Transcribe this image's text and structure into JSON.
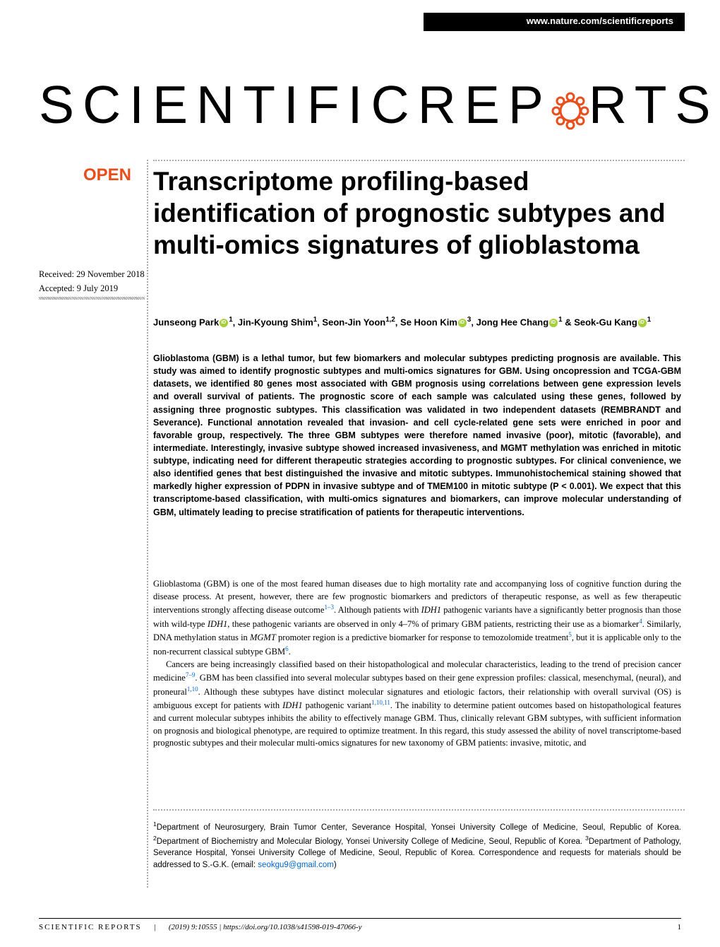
{
  "header": {
    "url": "www.nature.com/scientificreports",
    "journal_logo_text_1": "SCIENTIFIC ",
    "journal_logo_text_2": "REP",
    "journal_logo_text_3": "RTS",
    "open_badge": "OPEN",
    "gear_color": "#e84e1b"
  },
  "title": "Transcriptome profiling-based identification of prognostic subtypes and multi-omics signatures of glioblastoma",
  "dates": {
    "received": "Received: 29 November 2018",
    "accepted": "Accepted: 9 July 2019"
  },
  "authors_html": "Junseong Park<span class='orcid'></span><sup>1</sup>, Jin-Kyoung Shim<sup>1</sup>, Seon-Jin Yoon<sup>1,2</sup>, Se Hoon Kim<span class='orcid'></span><sup>3</sup>, Jong Hee Chang<span class='orcid'></span><sup>1</sup> &amp; Seok-Gu Kang<span class='orcid'></span><sup>1</sup>",
  "abstract": "Glioblastoma (GBM) is a lethal tumor, but few biomarkers and molecular subtypes predicting prognosis are available. This study was aimed to identify prognostic subtypes and multi-omics signatures for GBM. Using oncopression and TCGA-GBM datasets, we identified 80 genes most associated with GBM prognosis using correlations between gene expression levels and overall survival of patients. The prognostic score of each sample was calculated using these genes, followed by assigning three prognostic subtypes. This classification was validated in two independent datasets (REMBRANDT and Severance). Functional annotation revealed that invasion- and cell cycle-related gene sets were enriched in poor and favorable group, respectively. The three GBM subtypes were therefore named invasive (poor), mitotic (favorable), and intermediate. Interestingly, invasive subtype showed increased invasiveness, and MGMT methylation was enriched in mitotic subtype, indicating need for different therapeutic strategies according to prognostic subtypes. For clinical convenience, we also identified genes that best distinguished the invasive and mitotic subtypes. Immunohistochemical staining showed that markedly higher expression of PDPN in invasive subtype and of TMEM100 in mitotic subtype (P < 0.001). We expect that this transcriptome-based classification, with multi-omics signatures and biomarkers, can improve molecular understanding of GBM, ultimately leading to precise stratification of patients for therapeutic interventions.",
  "body": {
    "para1": "Glioblastoma (GBM) is one of the most feared human diseases due to high mortality rate and accompanying loss of cognitive function during the disease process. At present, however, there are few prognostic biomarkers and predictors of therapeutic response, as well as few therapeutic interventions strongly affecting disease outcome<span class='ref-link'>1–3</span>. Although patients with <i>IDH1</i> pathogenic variants have a significantly better prognosis than those with wild-type <i>IDH1</i>, these pathogenic variants are observed in only 4–7% of primary GBM patients, restricting their use as a biomarker<span class='ref-link'>4</span>. Similarly, DNA methylation status in <i>MGMT</i> promoter region is a predictive biomarker for response to temozolomide treatment<span class='ref-link'>5</span>, but it is applicable only to the non-recurrent classical subtype GBM<span class='ref-link'>6</span>.",
    "para2": "Cancers are being increasingly classified based on their histopathological and molecular characteristics, leading to the trend of precision cancer medicine<span class='ref-link'>7–9</span>. GBM has been classified into several molecular subtypes based on their gene expression profiles: classical, mesenchymal, (neural), and proneural<span class='ref-link'>1,10</span>. Although these subtypes have distinct molecular signatures and etiologic factors, their relationship with overall survival (OS) is ambiguous except for patients with <i>IDH1</i> pathogenic variant<span class='ref-link'>1,10,11</span>. The inability to determine patient outcomes based on histopathological features and current molecular subtypes inhibits the ability to effectively manage GBM. Thus, clinically relevant GBM subtypes, with sufficient information on prognosis and biological phenotype, are required to optimize treatment. In this regard, this study assessed the ability of novel transcriptome-based prognostic subtypes and their molecular multi-omics signatures for new taxonomy of GBM patients: invasive, mitotic, and"
  },
  "affiliations": "<sup>1</sup>Department of Neurosurgery, Brain Tumor Center, Severance Hospital, Yonsei University College of Medicine, Seoul, Republic of Korea. <sup>2</sup>Department of Biochemistry and Molecular Biology, Yonsei University College of Medicine, Seoul, Republic of Korea. <sup>3</sup>Department of Pathology, Severance Hospital, Yonsei University College of Medicine, Seoul, Republic of Korea. Correspondence and requests for materials should be addressed to S.-G.K. (email: <span class='email-link'>seokgu9@gmail.com</span>)",
  "footer": {
    "journal": "SCIENTIFIC REPORTS",
    "citation": "(2019) 9:10555 | https://doi.org/10.1038/s41598-019-47066-y",
    "page": "1"
  },
  "colors": {
    "accent": "#e84e1b",
    "link": "#0066cc",
    "orcid_green": "#a6ce39",
    "text": "#000000",
    "background": "#ffffff",
    "dotted": "#aaaaaa"
  }
}
